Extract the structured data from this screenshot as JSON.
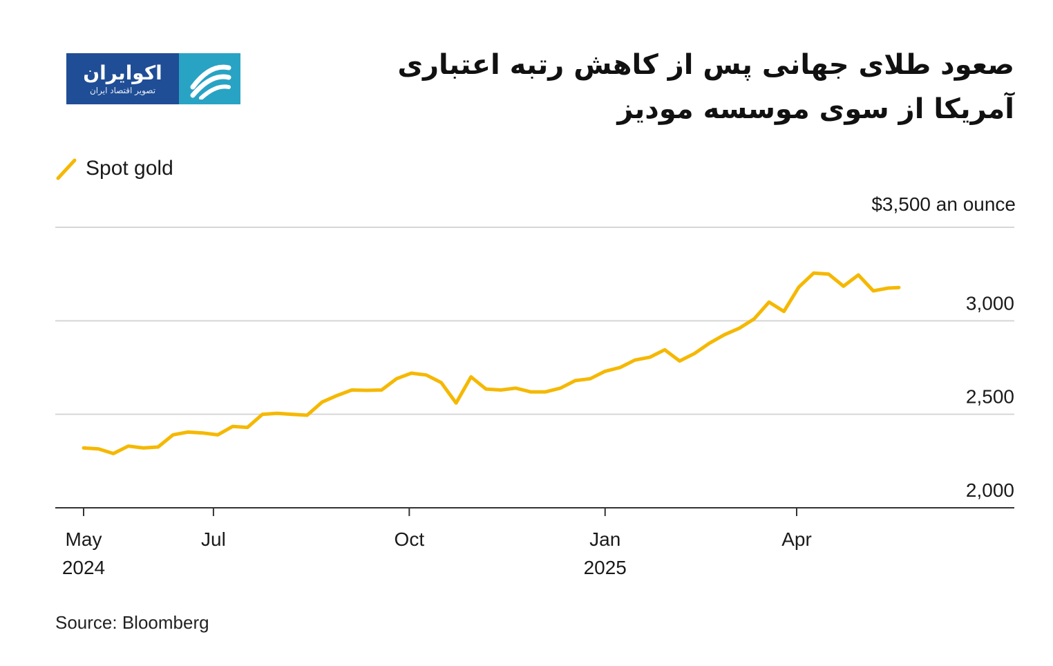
{
  "title": "صعود طلای جهانی پس از کاهش رتبه اعتباری آمریکا از سوی موسسه مودیز",
  "logo": {
    "name": "اکوایران",
    "tagline": "تصویر اقتصاد ایران",
    "colors": {
      "primary": "#1f4e96",
      "accent": "#29a3c4"
    }
  },
  "legend": {
    "label": "Spot gold",
    "color": "#f5b800"
  },
  "unit_label": "$3,500 an ounce",
  "source": "Source: Bloomberg",
  "chart_data": {
    "type": "line",
    "title": "",
    "xlabel": "",
    "ylabel": "",
    "ylim": [
      2000,
      3500
    ],
    "grid": true,
    "legend_position": "top-left",
    "y_ticks": [
      {
        "value": 2000,
        "label": "2,000"
      },
      {
        "value": 2500,
        "label": "2,500"
      },
      {
        "value": 3000,
        "label": "3,000"
      },
      {
        "value": 3500,
        "label": ""
      }
    ],
    "x_ticks": [
      {
        "date": "2024-05-01",
        "line1": "May",
        "line2": "2024"
      },
      {
        "date": "2024-07-01",
        "line1": "Jul",
        "line2": ""
      },
      {
        "date": "2024-10-01",
        "line1": "Oct",
        "line2": ""
      },
      {
        "date": "2025-01-01",
        "line1": "Jan",
        "line2": "2025"
      },
      {
        "date": "2025-04-01",
        "line1": "Apr",
        "line2": ""
      }
    ],
    "series": [
      {
        "name": "Spot gold",
        "color": "#f5b800",
        "x": [
          "2024-05-01",
          "2024-05-08",
          "2024-05-15",
          "2024-05-22",
          "2024-05-29",
          "2024-06-05",
          "2024-06-12",
          "2024-06-19",
          "2024-06-26",
          "2024-07-03",
          "2024-07-10",
          "2024-07-17",
          "2024-07-24",
          "2024-07-31",
          "2024-08-07",
          "2024-08-14",
          "2024-08-21",
          "2024-08-28",
          "2024-09-04",
          "2024-09-11",
          "2024-09-18",
          "2024-09-25",
          "2024-10-02",
          "2024-10-09",
          "2024-10-16",
          "2024-10-23",
          "2024-10-30",
          "2024-11-06",
          "2024-11-13",
          "2024-11-20",
          "2024-11-27",
          "2024-12-04",
          "2024-12-11",
          "2024-12-18",
          "2024-12-25",
          "2025-01-01",
          "2025-01-08",
          "2025-01-15",
          "2025-01-22",
          "2025-01-29",
          "2025-02-05",
          "2025-02-12",
          "2025-02-19",
          "2025-02-26",
          "2025-03-05",
          "2025-03-12",
          "2025-03-19",
          "2025-03-26",
          "2025-04-02",
          "2025-04-09",
          "2025-04-16",
          "2025-04-23",
          "2025-04-30",
          "2025-05-07",
          "2025-05-14",
          "2025-05-19"
        ],
        "y": [
          2320,
          2315,
          2290,
          2330,
          2320,
          2325,
          2390,
          2405,
          2400,
          2390,
          2435,
          2430,
          2500,
          2505,
          2500,
          2495,
          2565,
          2600,
          2630,
          2628,
          2630,
          2690,
          2720,
          2710,
          2670,
          2560,
          2700,
          2635,
          2630,
          2640,
          2620,
          2620,
          2640,
          2680,
          2690,
          2730,
          2750,
          2790,
          2805,
          2845,
          2785,
          2825,
          2880,
          2925,
          2960,
          3010,
          3100,
          3050,
          3180,
          3255,
          3250,
          3185,
          3245,
          3160,
          3175,
          3178
        ]
      }
    ]
  }
}
